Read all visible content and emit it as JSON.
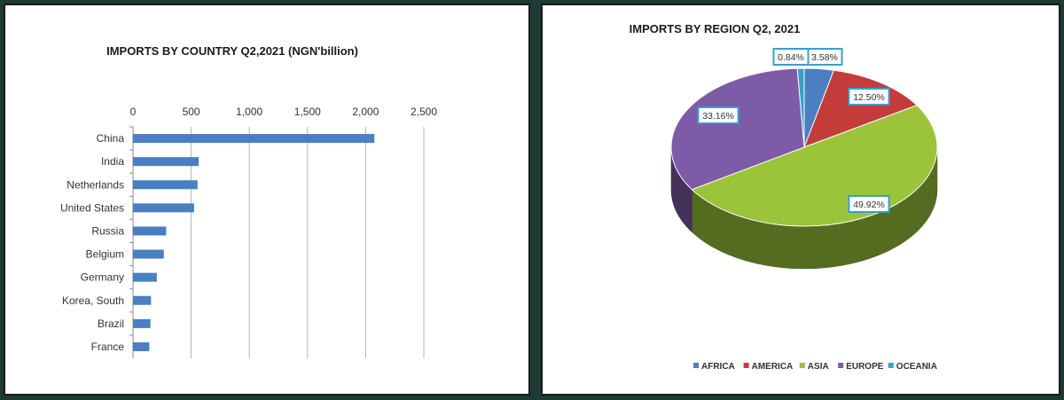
{
  "chart_data": [
    {
      "type": "bar",
      "orientation": "horizontal",
      "title": "IMPORTS  BY COUNTRY Q2,2021 (NGN'billion)",
      "categories": [
        "China",
        "India",
        "Netherlands",
        "United States",
        "Russia",
        "Belgium",
        "Germany",
        "Korea, South",
        "Brazil",
        "France"
      ],
      "values": [
        2075,
        565,
        555,
        525,
        285,
        265,
        205,
        155,
        150,
        140
      ],
      "xlim": [
        0,
        2500
      ],
      "x_ticks": [
        0,
        500,
        1000,
        1500,
        2000,
        2500
      ],
      "x_tick_labels": [
        "0",
        "500",
        "1,000",
        "1,500",
        "2,000",
        "2,500"
      ],
      "axis_position": "top",
      "grid": true,
      "color": "#4a7fc1"
    },
    {
      "type": "pie",
      "style": "3d",
      "title": "IMPORTS BY REGION Q2, 2021",
      "legend_position": "bottom",
      "slices": [
        {
          "name": "AFRICA",
          "value": 3.58,
          "label": "3.58%",
          "color": "#4a7fc1"
        },
        {
          "name": "AMERICA",
          "value": 12.5,
          "label": "12.50%",
          "color": "#c43c39"
        },
        {
          "name": "ASIA",
          "value": 49.92,
          "label": "49.92%",
          "color": "#9bc43a"
        },
        {
          "name": "EUROPE",
          "value": 33.16,
          "label": "33.16%",
          "color": "#7d5ba6"
        },
        {
          "name": "OCEANIA",
          "value": 0.84,
          "label": "0.84%",
          "color": "#3aa0c8"
        }
      ]
    }
  ]
}
